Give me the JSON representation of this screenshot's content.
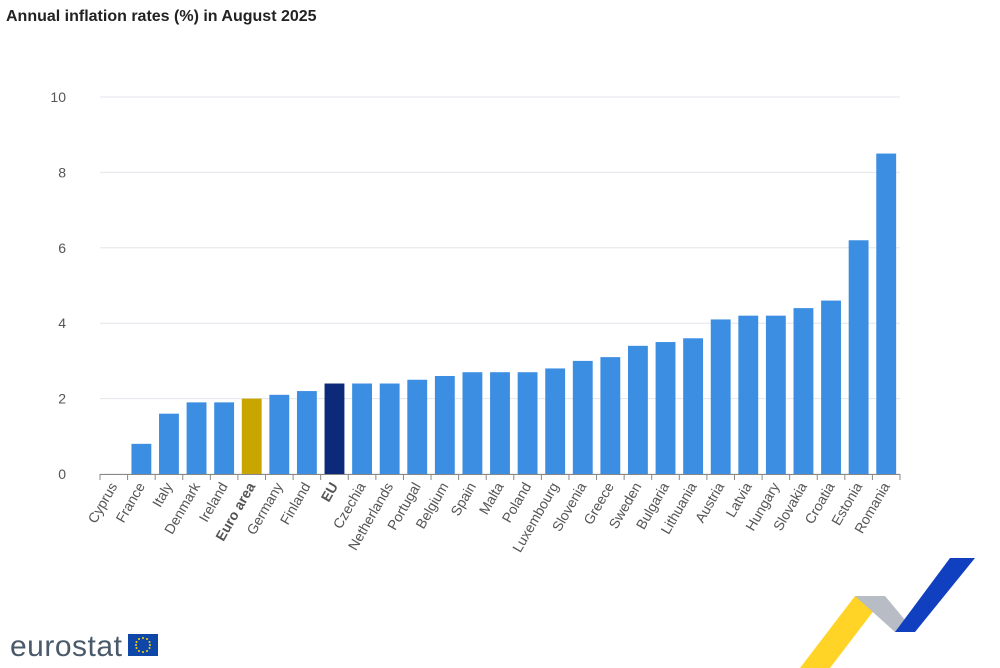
{
  "chart_data": {
    "type": "bar",
    "title": "Annual inflation rates (%) in August 2025",
    "categories": [
      "Cyprus",
      "France",
      "Italy",
      "Denmark",
      "Ireland",
      "Euro area",
      "Germany",
      "Finland",
      "EU",
      "Czechia",
      "Netherlands",
      "Portugal",
      "Belgium",
      "Spain",
      "Malta",
      "Poland",
      "Luxembourg",
      "Slovenia",
      "Greece",
      "Sweden",
      "Bulgaria",
      "Lithuania",
      "Austria",
      "Latvia",
      "Hungary",
      "Slovakia",
      "Croatia",
      "Estonia",
      "Romania"
    ],
    "values": [
      0,
      0.8,
      1.6,
      1.9,
      1.9,
      2.0,
      2.1,
      2.2,
      2.4,
      2.4,
      2.4,
      2.5,
      2.6,
      2.7,
      2.7,
      2.7,
      2.8,
      3.0,
      3.1,
      3.4,
      3.5,
      3.6,
      4.1,
      4.2,
      4.2,
      4.4,
      4.6,
      6.2,
      8.5
    ],
    "colors": [
      "#3c8ee2",
      "#3c8ee2",
      "#3c8ee2",
      "#3c8ee2",
      "#3c8ee2",
      "#c9a500",
      "#3c8ee2",
      "#3c8ee2",
      "#0d2a7a",
      "#3c8ee2",
      "#3c8ee2",
      "#3c8ee2",
      "#3c8ee2",
      "#3c8ee2",
      "#3c8ee2",
      "#3c8ee2",
      "#3c8ee2",
      "#3c8ee2",
      "#3c8ee2",
      "#3c8ee2",
      "#3c8ee2",
      "#3c8ee2",
      "#3c8ee2",
      "#3c8ee2",
      "#3c8ee2",
      "#3c8ee2",
      "#3c8ee2",
      "#3c8ee2",
      "#3c8ee2"
    ],
    "bold_categories": [
      5,
      8
    ],
    "ylim": [
      0,
      10
    ],
    "yticks": [
      0,
      2,
      4,
      6,
      8,
      10
    ],
    "grid": true
  },
  "footer": {
    "logo": "eurostat"
  }
}
